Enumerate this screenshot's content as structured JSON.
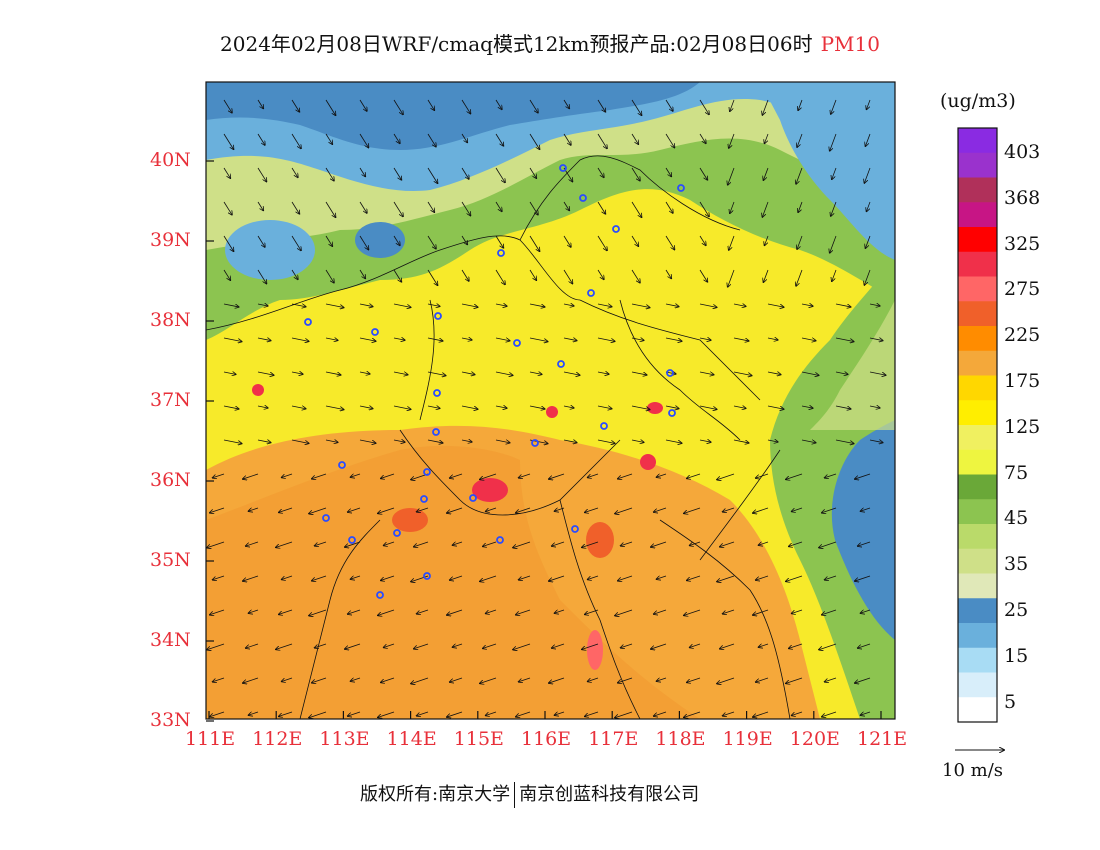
{
  "title": "2024年02月08日WRF/cmaq模式12km预报产品:02月08日06时",
  "pollutant": "PM10",
  "map": {
    "x_ticks": [
      "111E",
      "112E",
      "113E",
      "114E",
      "115E",
      "116E",
      "117E",
      "118E",
      "119E",
      "120E",
      "121E"
    ],
    "y_ticks": [
      "40N",
      "39N",
      "38N",
      "37N",
      "36N",
      "35N",
      "34N",
      "33N"
    ]
  },
  "legend": {
    "unit": "(ug/m3)",
    "labels": [
      "403",
      "368",
      "325",
      "275",
      "225",
      "175",
      "125",
      "75",
      "45",
      "35",
      "25",
      "15",
      "5"
    ],
    "colors": [
      "#8a2be2",
      "#9a32cd",
      "#b0305a",
      "#c71585",
      "#ff0000",
      "#f0304a",
      "#ff6666",
      "#f0602a",
      "#ff8c00",
      "#f4a83a",
      "#ffd700",
      "#ffee00",
      "#f0f060",
      "#eef540",
      "#6aa838",
      "#8cc450",
      "#bada6a",
      "#cfe088",
      "#e0e8b8",
      "#4a8cc4",
      "#6ab0dc",
      "#a8dcf4",
      "#d8eefa",
      "#ffffff"
    ]
  },
  "wind_scale": "10 m/s",
  "footer": {
    "left": "版权所有:南京大学",
    "right": "南京创蓝科技有限公司"
  }
}
